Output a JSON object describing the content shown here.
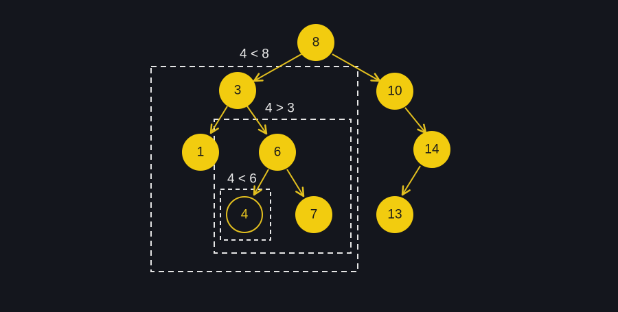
{
  "colors": {
    "background": "#14161d",
    "node_fill": "#f2cc0f",
    "node_text": "#1a1a1a",
    "edge": "#e3c01f",
    "highlight_text": "#e3c01f",
    "dashed_box": "#e6e6e6",
    "label_text": "#e8e8e8"
  },
  "tree": {
    "root": {
      "value": "8"
    },
    "n3": {
      "value": "3"
    },
    "n10": {
      "value": "10"
    },
    "n1": {
      "value": "1"
    },
    "n6": {
      "value": "6"
    },
    "n14": {
      "value": "14"
    },
    "n4": {
      "value": "4",
      "highlighted": true
    },
    "n7": {
      "value": "7"
    },
    "n13": {
      "value": "13"
    }
  },
  "comparisons": {
    "outer": "4 < 8",
    "middle": "4 > 3",
    "inner": "4 < 6"
  }
}
